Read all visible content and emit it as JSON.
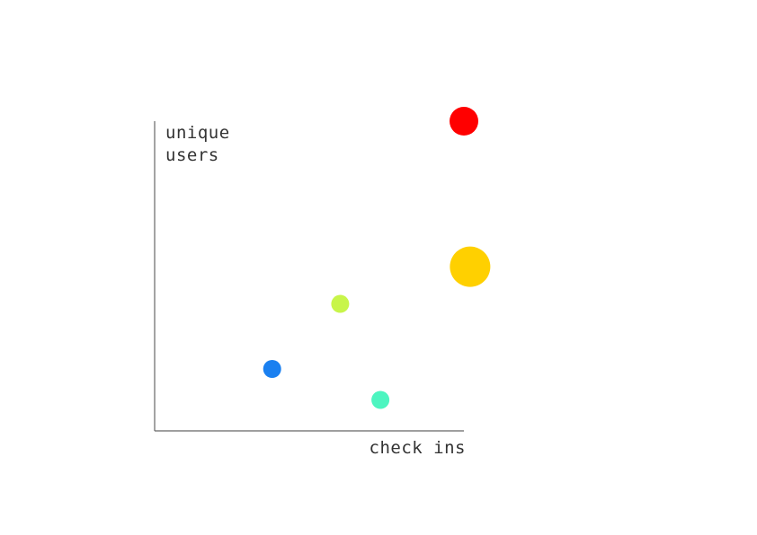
{
  "chart_data": {
    "type": "scatter",
    "xlabel": "check ins",
    "ylabel": [
      "unique",
      "users"
    ],
    "xlim": [
      0,
      100
    ],
    "ylim": [
      0,
      100
    ],
    "grid": false,
    "points": [
      {
        "x": 38,
        "y": 20,
        "size": 2.0,
        "color": "#1a80f0"
      },
      {
        "x": 60,
        "y": 41,
        "size": 2.0,
        "color": "#c8f54a"
      },
      {
        "x": 73,
        "y": 10,
        "size": 2.0,
        "color": "#4df5c0"
      },
      {
        "x": 100,
        "y": 100,
        "size": 3.2,
        "color": "#ff0000"
      },
      {
        "x": 102,
        "y": 53,
        "size": 4.5,
        "color": "#ffd000"
      }
    ]
  }
}
